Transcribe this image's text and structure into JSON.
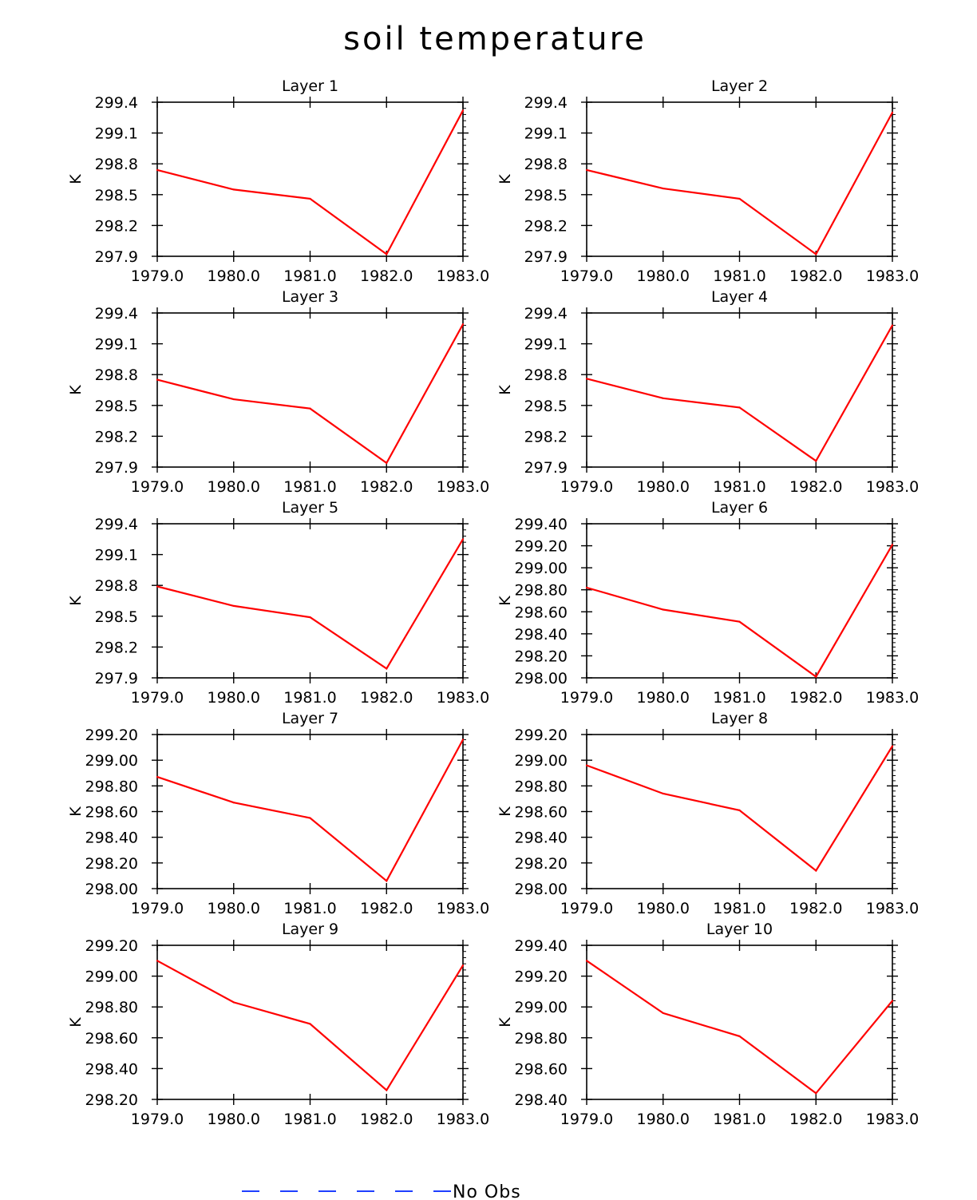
{
  "figure": {
    "title": "soil temperature",
    "legend": {
      "label": "No Obs",
      "line_color": "#1f3fff",
      "line_style": "dashed"
    }
  },
  "chart_data": [
    {
      "type": "line",
      "title": "Layer 1",
      "ylabel": "K",
      "x": [
        1979.0,
        1980.0,
        1981.0,
        1982.0,
        1983.0
      ],
      "xticks": [
        "1979.0",
        "1980.0",
        "1981.0",
        "1982.0",
        "1983.0"
      ],
      "ylim": [
        297.9,
        299.4
      ],
      "yticks": [
        "297.9",
        "298.2",
        "298.5",
        "298.8",
        "299.1",
        "299.4"
      ],
      "series": [
        {
          "values": [
            298.74,
            298.55,
            298.46,
            297.92,
            299.32
          ],
          "color": "#ff0000"
        }
      ]
    },
    {
      "type": "line",
      "title": "Layer 2",
      "ylabel": "K",
      "x": [
        1979.0,
        1980.0,
        1981.0,
        1982.0,
        1983.0
      ],
      "xticks": [
        "1979.0",
        "1980.0",
        "1981.0",
        "1982.0",
        "1983.0"
      ],
      "ylim": [
        297.9,
        299.4
      ],
      "yticks": [
        "297.9",
        "298.2",
        "298.5",
        "298.8",
        "299.1",
        "299.4"
      ],
      "series": [
        {
          "values": [
            298.74,
            298.56,
            298.46,
            297.92,
            299.3
          ],
          "color": "#ff0000"
        }
      ]
    },
    {
      "type": "line",
      "title": "Layer 3",
      "ylabel": "K",
      "x": [
        1979.0,
        1980.0,
        1981.0,
        1982.0,
        1983.0
      ],
      "xticks": [
        "1979.0",
        "1980.0",
        "1981.0",
        "1982.0",
        "1983.0"
      ],
      "ylim": [
        297.9,
        299.4
      ],
      "yticks": [
        "297.9",
        "298.2",
        "298.5",
        "298.8",
        "299.1",
        "299.4"
      ],
      "series": [
        {
          "values": [
            298.75,
            298.56,
            298.47,
            297.94,
            299.29
          ],
          "color": "#ff0000"
        }
      ]
    },
    {
      "type": "line",
      "title": "Layer 4",
      "ylabel": "K",
      "x": [
        1979.0,
        1980.0,
        1981.0,
        1982.0,
        1983.0
      ],
      "xticks": [
        "1979.0",
        "1980.0",
        "1981.0",
        "1982.0",
        "1983.0"
      ],
      "ylim": [
        297.9,
        299.4
      ],
      "yticks": [
        "297.9",
        "298.2",
        "298.5",
        "298.8",
        "299.1",
        "299.4"
      ],
      "series": [
        {
          "values": [
            298.76,
            298.57,
            298.48,
            297.96,
            299.28
          ],
          "color": "#ff0000"
        }
      ]
    },
    {
      "type": "line",
      "title": "Layer 5",
      "ylabel": "K",
      "x": [
        1979.0,
        1980.0,
        1981.0,
        1982.0,
        1983.0
      ],
      "xticks": [
        "1979.0",
        "1980.0",
        "1981.0",
        "1982.0",
        "1983.0"
      ],
      "ylim": [
        297.9,
        299.4
      ],
      "yticks": [
        "297.9",
        "298.2",
        "298.5",
        "298.8",
        "299.1",
        "299.4"
      ],
      "series": [
        {
          "values": [
            298.79,
            298.6,
            298.49,
            297.99,
            299.25
          ],
          "color": "#ff0000"
        }
      ]
    },
    {
      "type": "line",
      "title": "Layer 6",
      "ylabel": "K",
      "x": [
        1979.0,
        1980.0,
        1981.0,
        1982.0,
        1983.0
      ],
      "xticks": [
        "1979.0",
        "1980.0",
        "1981.0",
        "1982.0",
        "1983.0"
      ],
      "ylim": [
        298.0,
        299.4
      ],
      "yticks": [
        "298.00",
        "298.20",
        "298.40",
        "298.60",
        "298.80",
        "299.00",
        "299.20",
        "299.40"
      ],
      "series": [
        {
          "values": [
            298.82,
            298.62,
            298.51,
            298.01,
            299.21
          ],
          "color": "#ff0000"
        }
      ]
    },
    {
      "type": "line",
      "title": "Layer 7",
      "ylabel": "K",
      "x": [
        1979.0,
        1980.0,
        1981.0,
        1982.0,
        1983.0
      ],
      "xticks": [
        "1979.0",
        "1980.0",
        "1981.0",
        "1982.0",
        "1983.0"
      ],
      "ylim": [
        298.0,
        299.2
      ],
      "yticks": [
        "298.00",
        "298.20",
        "298.40",
        "298.60",
        "298.80",
        "299.00",
        "299.20"
      ],
      "series": [
        {
          "values": [
            298.87,
            298.67,
            298.55,
            298.06,
            299.16
          ],
          "color": "#ff0000"
        }
      ]
    },
    {
      "type": "line",
      "title": "Layer 8",
      "ylabel": "K",
      "x": [
        1979.0,
        1980.0,
        1981.0,
        1982.0,
        1983.0
      ],
      "xticks": [
        "1979.0",
        "1980.0",
        "1981.0",
        "1982.0",
        "1983.0"
      ],
      "ylim": [
        298.0,
        299.2
      ],
      "yticks": [
        "298.00",
        "298.20",
        "298.40",
        "298.60",
        "298.80",
        "299.00",
        "299.20"
      ],
      "series": [
        {
          "values": [
            298.96,
            298.74,
            298.61,
            298.14,
            299.11
          ],
          "color": "#ff0000"
        }
      ]
    },
    {
      "type": "line",
      "title": "Layer 9",
      "ylabel": "K",
      "x": [
        1979.0,
        1980.0,
        1981.0,
        1982.0,
        1983.0
      ],
      "xticks": [
        "1979.0",
        "1980.0",
        "1981.0",
        "1982.0",
        "1983.0"
      ],
      "ylim": [
        298.2,
        299.2
      ],
      "yticks": [
        "298.20",
        "298.40",
        "298.60",
        "298.80",
        "299.00",
        "299.20"
      ],
      "series": [
        {
          "values": [
            299.1,
            298.83,
            298.69,
            298.26,
            299.07
          ],
          "color": "#ff0000"
        }
      ]
    },
    {
      "type": "line",
      "title": "Layer 10",
      "ylabel": "K",
      "x": [
        1979.0,
        1980.0,
        1981.0,
        1982.0,
        1983.0
      ],
      "xticks": [
        "1979.0",
        "1980.0",
        "1981.0",
        "1982.0",
        "1983.0"
      ],
      "ylim": [
        298.4,
        299.4
      ],
      "yticks": [
        "298.40",
        "298.60",
        "298.80",
        "299.00",
        "299.20",
        "299.40"
      ],
      "series": [
        {
          "values": [
            299.3,
            298.96,
            298.81,
            298.44,
            299.04
          ],
          "color": "#ff0000"
        }
      ]
    }
  ]
}
